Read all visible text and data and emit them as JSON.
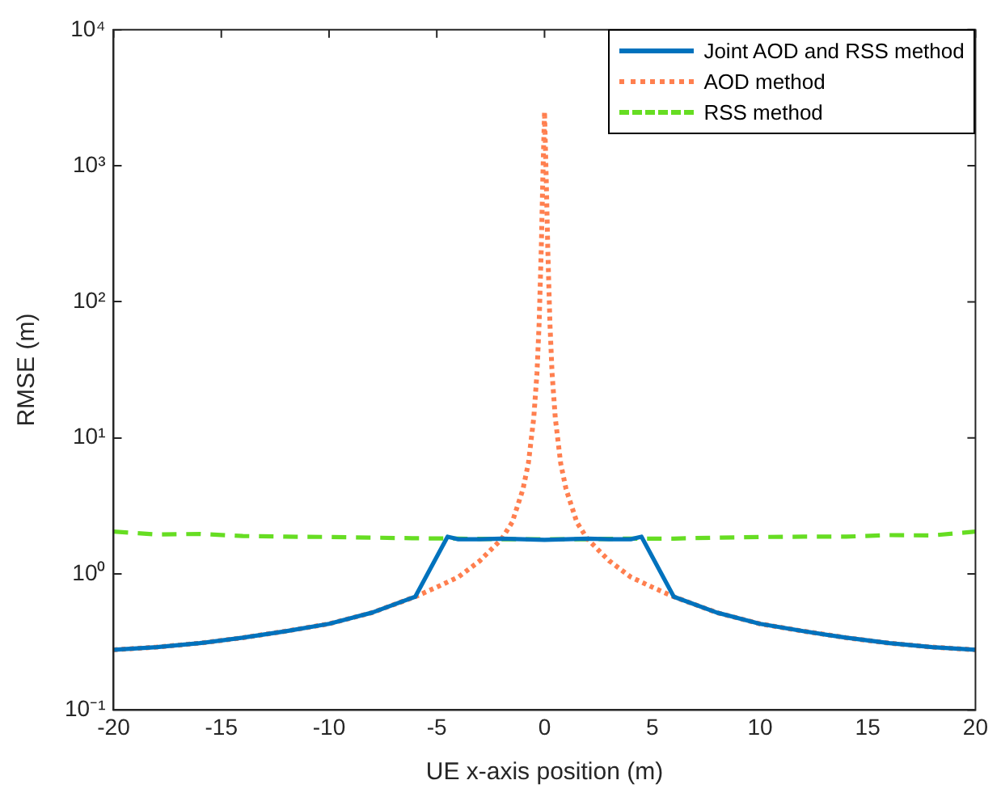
{
  "chart_data": {
    "type": "line",
    "xlabel": "UE x-axis position (m)",
    "ylabel": "RMSE (m)",
    "log": "y",
    "grid": false,
    "legend": "top right",
    "marker": "none",
    "xlim": [
      -20,
      20
    ],
    "xticks": [
      -20,
      -15,
      -10,
      -5,
      0,
      5,
      10,
      15,
      20
    ],
    "ylim": [
      0.1,
      10000
    ],
    "yticks": [
      {
        "value": 0.1,
        "label": "10⁻¹"
      },
      {
        "value": 1,
        "label": "10⁰"
      },
      {
        "value": 10,
        "label": "10¹"
      },
      {
        "value": 100,
        "label": "10²"
      },
      {
        "value": 1000,
        "label": "10³"
      },
      {
        "value": 10000,
        "label": "10⁴"
      }
    ],
    "series": [
      {
        "name": "Joint AOD and RSS method",
        "color": "#0072bd",
        "line_style": "solid",
        "x": [
          -20,
          -18,
          -16,
          -14,
          -12,
          -10,
          -8,
          -6,
          -4.5,
          -4,
          -3,
          -2,
          -1,
          0,
          1,
          2,
          3,
          4,
          4.5,
          6,
          8,
          10,
          12,
          14,
          16,
          18,
          20
        ],
        "values": [
          0.277,
          0.29,
          0.31,
          0.34,
          0.38,
          0.43,
          0.52,
          0.68,
          1.88,
          1.8,
          1.8,
          1.82,
          1.8,
          1.78,
          1.8,
          1.82,
          1.8,
          1.8,
          1.88,
          0.68,
          0.52,
          0.43,
          0.38,
          0.34,
          0.31,
          0.29,
          0.277
        ]
      },
      {
        "name": "AOD method",
        "color": "#ff7f4f",
        "line_style": "dotted",
        "x": [
          -20,
          -18,
          -16,
          -14,
          -12,
          -10,
          -8,
          -6,
          -5,
          -4,
          -3,
          -2,
          -1.5,
          -1,
          -0.75,
          -0.5,
          -0.35,
          -0.25,
          -0.15,
          -0.08,
          0,
          0.08,
          0.15,
          0.25,
          0.35,
          0.5,
          0.75,
          1,
          1.5,
          2,
          3,
          4,
          5,
          6,
          8,
          10,
          12,
          14,
          16,
          18,
          20
        ],
        "values": [
          0.277,
          0.29,
          0.31,
          0.34,
          0.38,
          0.43,
          0.52,
          0.68,
          0.8,
          0.95,
          1.25,
          1.8,
          2.4,
          4.2,
          6.5,
          14,
          30,
          70,
          250,
          800,
          2500,
          800,
          250,
          70,
          30,
          14,
          6.5,
          4.2,
          2.4,
          1.8,
          1.25,
          0.95,
          0.8,
          0.68,
          0.52,
          0.43,
          0.38,
          0.34,
          0.31,
          0.29,
          0.277
        ]
      },
      {
        "name": "RSS method",
        "color": "#66dd22",
        "line_style": "dashed",
        "x": [
          -20,
          -18,
          -16,
          -14,
          -12,
          -10,
          -8,
          -6,
          -4,
          -2,
          0,
          2,
          4,
          6,
          8,
          10,
          12,
          14,
          16,
          18,
          20
        ],
        "values": [
          2.05,
          1.95,
          1.97,
          1.9,
          1.88,
          1.87,
          1.85,
          1.83,
          1.82,
          1.8,
          1.8,
          1.8,
          1.82,
          1.82,
          1.85,
          1.87,
          1.88,
          1.88,
          1.93,
          1.92,
          2.05
        ]
      }
    ]
  }
}
